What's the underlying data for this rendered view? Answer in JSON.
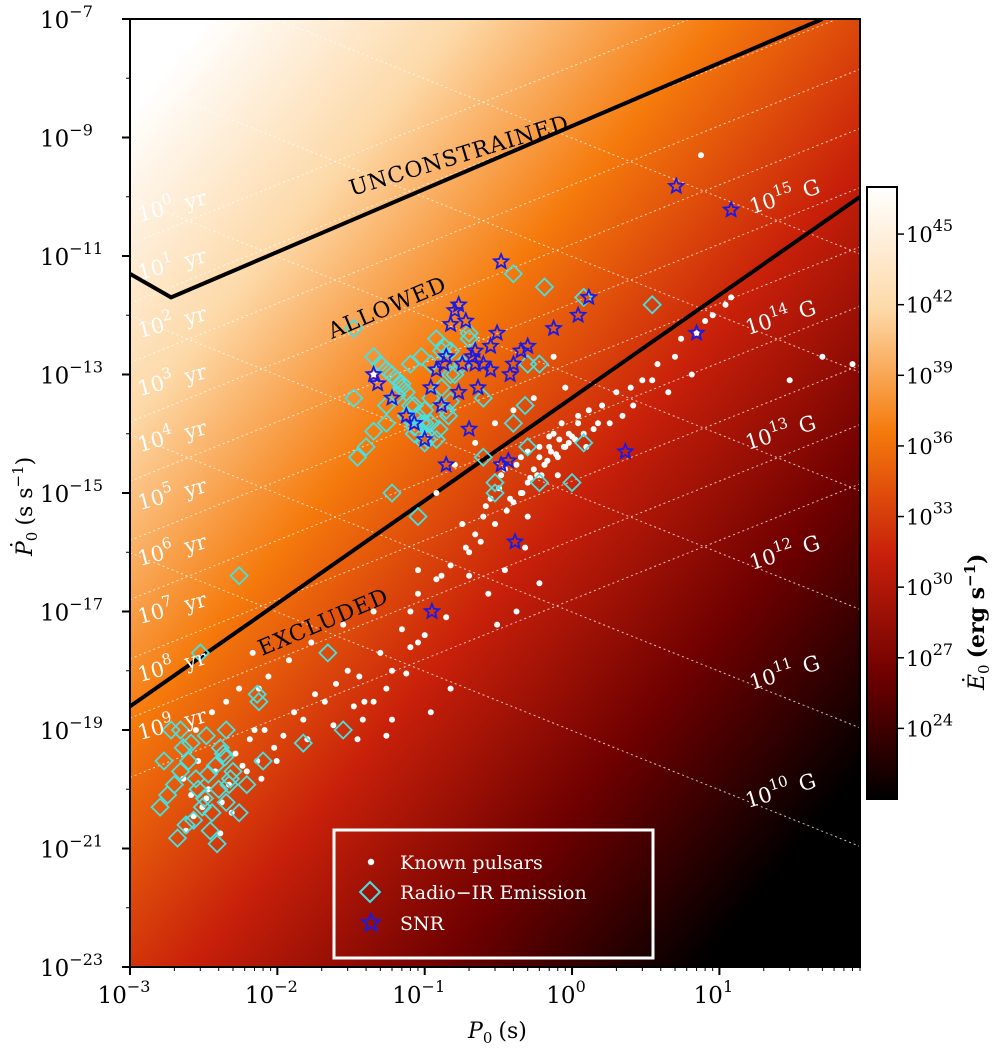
{
  "chart_data": {
    "type": "scatter",
    "xlabel": "P",
    "xlabel_sub": "0",
    "xlabel_unit": "(s)",
    "ylabel": "P",
    "ylabel_sub": "0",
    "ylabel_unit": "(s s",
    "ylabel_unit_exp": "−1",
    "ylabel_unit_close": ")",
    "x_scale": "log",
    "y_scale": "log",
    "xlim": [
      0.001,
      90
    ],
    "ylim": [
      1e-23,
      1e-07
    ],
    "x_ticks": [
      {
        "base": "10",
        "exp": "−3",
        "value": 0.001
      },
      {
        "base": "10",
        "exp": "−2",
        "value": 0.01
      },
      {
        "base": "10",
        "exp": "−1",
        "value": 0.1
      },
      {
        "base": "10",
        "exp": "0",
        "value": 1
      },
      {
        "base": "10",
        "exp": "1",
        "value": 10
      }
    ],
    "y_ticks": [
      {
        "base": "10",
        "exp": "−7",
        "value": 1e-07
      },
      {
        "base": "10",
        "exp": "−9",
        "value": 1e-09
      },
      {
        "base": "10",
        "exp": "−11",
        "value": 1e-11
      },
      {
        "base": "10",
        "exp": "−13",
        "value": 1e-13
      },
      {
        "base": "10",
        "exp": "−15",
        "value": 1e-15
      },
      {
        "base": "10",
        "exp": "−17",
        "value": 1e-17
      },
      {
        "base": "10",
        "exp": "−19",
        "value": 1e-19
      },
      {
        "base": "10",
        "exp": "−21",
        "value": 1e-21
      },
      {
        "base": "10",
        "exp": "−23",
        "value": 1e-23
      }
    ],
    "colorbar": {
      "label": "E",
      "label_sub": "0",
      "label_unit": "(erg s",
      "label_unit_exp": "−1",
      "label_unit_close": ")",
      "scale": "log",
      "range": [
        1e+21,
        1e+47
      ],
      "colors": [
        "#000000",
        "#6e0000",
        "#c8200a",
        "#f57a0c",
        "#fdd9a8",
        "#ffffff"
      ],
      "ticks": [
        {
          "base": "10",
          "exp": "45",
          "value": 1e+45
        },
        {
          "base": "10",
          "exp": "42",
          "value": 1e+42
        },
        {
          "base": "10",
          "exp": "39",
          "value": 1e+39
        },
        {
          "base": "10",
          "exp": "36",
          "value": 1e+36
        },
        {
          "base": "10",
          "exp": "33",
          "value": 1e+33
        },
        {
          "base": "10",
          "exp": "30",
          "value": 1e+30
        },
        {
          "base": "10",
          "exp": "27",
          "value": 1e+27
        },
        {
          "base": "10",
          "exp": "24",
          "value": 1e+24
        }
      ]
    },
    "region_labels": [
      "UNCONSTRAINED",
      "ALLOWED",
      "EXCLUDED"
    ],
    "age_lines": [
      {
        "base": "10",
        "exp": "0",
        "unit": "yr",
        "age_yr": 1
      },
      {
        "base": "10",
        "exp": "1",
        "unit": "yr",
        "age_yr": 10
      },
      {
        "base": "10",
        "exp": "2",
        "unit": "yr",
        "age_yr": 100
      },
      {
        "base": "10",
        "exp": "3",
        "unit": "yr",
        "age_yr": 1000
      },
      {
        "base": "10",
        "exp": "4",
        "unit": "yr",
        "age_yr": 10000
      },
      {
        "base": "10",
        "exp": "5",
        "unit": "yr",
        "age_yr": 100000
      },
      {
        "base": "10",
        "exp": "6",
        "unit": "yr",
        "age_yr": 1000000
      },
      {
        "base": "10",
        "exp": "7",
        "unit": "yr",
        "age_yr": 10000000
      },
      {
        "base": "10",
        "exp": "8",
        "unit": "yr",
        "age_yr": 100000000
      },
      {
        "base": "10",
        "exp": "9",
        "unit": "yr",
        "age_yr": 1000000000
      }
    ],
    "field_lines": [
      {
        "base": "10",
        "exp": "15",
        "unit": "G",
        "B_gauss": 1000000000000000.0
      },
      {
        "base": "10",
        "exp": "14",
        "unit": "G",
        "B_gauss": 100000000000000.0
      },
      {
        "base": "10",
        "exp": "13",
        "unit": "G",
        "B_gauss": 10000000000000.0
      },
      {
        "base": "10",
        "exp": "12",
        "unit": "G",
        "B_gauss": 1000000000000.0
      },
      {
        "base": "10",
        "exp": "11",
        "unit": "G",
        "B_gauss": 100000000000.0
      },
      {
        "base": "10",
        "exp": "10",
        "unit": "G",
        "B_gauss": 10000000000.0
      }
    ],
    "boundary_lines": [
      {
        "name": "UNCONSTRAINED",
        "points": [
          [
            0.001,
            5e-12
          ],
          [
            0.0019,
            2e-12
          ],
          [
            50,
            1e-07
          ]
        ]
      },
      {
        "name": "EXCLUDED",
        "points": [
          [
            0.001,
            2.5e-19
          ],
          [
            90,
            1e-10
          ]
        ]
      }
    ],
    "legend": {
      "placement": "lower-center",
      "entries": [
        {
          "label": "Known pulsars",
          "marker": "dot",
          "color": "#ffffff"
        },
        {
          "label": "Radio−IR Emission",
          "marker": "diamond",
          "color": "#48e0e0"
        },
        {
          "label": "SNR",
          "marker": "star",
          "color": "#1a1ae6"
        }
      ]
    },
    "series": [
      {
        "name": "Known pulsars",
        "x": [
          0.0023,
          0.0026,
          0.0029,
          0.0031,
          0.0034,
          0.0038,
          0.0042,
          0.0047,
          0.0052,
          0.0058,
          0.0065,
          0.0073,
          0.0082,
          0.0095,
          0.011,
          0.013,
          0.015,
          0.018,
          0.021,
          0.025,
          0.03,
          0.036,
          0.0024,
          0.0027,
          0.0033,
          0.0041,
          0.0049,
          0.0062,
          0.0078,
          0.0099,
          0.016,
          0.024,
          0.039,
          0.055,
          0.075,
          0.0028,
          0.0036,
          0.0045,
          0.0055,
          0.0068,
          0.0087,
          0.012,
          0.017,
          0.028,
          0.045,
          0.07,
          0.09,
          0.13,
          0.2,
          0.18,
          0.26,
          0.33,
          0.45,
          0.7,
          0.12,
          0.16,
          0.22,
          0.3,
          0.4,
          0.55,
          0.9,
          0.28,
          0.35,
          0.5,
          0.75,
          1.1,
          1.6,
          0.25,
          0.32,
          0.42,
          0.6,
          0.85,
          1.3,
          2.0,
          3.0,
          0.22,
          0.38,
          0.52,
          0.68,
          0.95,
          1.4,
          2.2,
          0.3,
          0.46,
          0.62,
          0.8,
          1.05,
          1.5,
          0.36,
          0.5,
          0.65,
          0.9,
          1.2,
          0.4,
          0.58,
          0.78,
          1.0,
          0.45,
          0.65,
          0.88,
          0.55,
          0.72,
          0.95,
          0.6,
          0.82,
          1.1,
          0.7,
          0.48,
          0.35,
          0.27,
          0.6,
          0.42,
          0.31,
          0.2,
          0.24,
          0.5,
          0.8,
          1.25,
          1.8,
          2.6,
          3.5,
          5.0,
          7.0,
          9.0,
          12.0,
          2.5,
          3.8,
          5.5,
          8.0,
          11.0,
          4.5,
          6.5,
          0.08,
          0.1,
          0.14,
          0.05,
          0.06,
          0.09,
          0.11,
          0.15,
          0.007,
          0.0075,
          0.045,
          0.055,
          0.038,
          0.08,
          0.12,
          0.15,
          0.19,
          0.09,
          0.035,
          0.033,
          0.06,
          0.75,
          30,
          50,
          80,
          7.5,
          0.045
        ],
        "y": [
          1.5e-20,
          8e-21,
          3e-20,
          5e-21,
          1e-20,
          2e-20,
          6e-21,
          1.2e-20,
          4e-20,
          2.5e-20,
          7e-20,
          3e-20,
          1e-19,
          5e-20,
          8e-20,
          2e-19,
          1.5e-19,
          4e-19,
          3e-19,
          6e-19,
          1e-18,
          8e-19,
          2e-21,
          3.5e-21,
          7e-21,
          1.8e-21,
          4e-21,
          2e-20,
          1.5e-20,
          3e-20,
          7e-20,
          1.2e-19,
          3e-19,
          5e-19,
          9e-19,
          1e-19,
          2e-19,
          3e-19,
          5e-19,
          2e-18,
          8e-19,
          1.5e-18,
          3e-18,
          6e-18,
          1e-17,
          5e-18,
          2e-17,
          4e-17,
          1e-16,
          3e-16,
          6e-16,
          2e-15,
          4e-15,
          9e-15,
          1e-15,
          3e-15,
          7e-15,
          1.5e-14,
          2.5e-14,
          4e-14,
          6e-14,
          8e-16,
          2.5e-15,
          5e-15,
          1e-14,
          2e-14,
          3e-14,
          4e-16,
          1.2e-15,
          3e-15,
          6e-15,
          1.5e-14,
          2.5e-14,
          5e-14,
          8e-14,
          2e-16,
          8e-16,
          1.8e-15,
          3.5e-15,
          7e-15,
          1.2e-14,
          2e-14,
          3e-16,
          1e-15,
          2e-15,
          4e-15,
          8e-15,
          1.5e-14,
          5e-16,
          1.5e-15,
          3e-15,
          6e-15,
          1e-14,
          7e-16,
          2e-15,
          4.5e-15,
          9e-15,
          1e-15,
          3e-15,
          6e-15,
          2.5e-15,
          5e-15,
          1e-14,
          4e-15,
          8e-15,
          1.5e-14,
          6e-15,
          1.2e-16,
          5e-17,
          2e-17,
          3e-17,
          1e-17,
          6e-18,
          4e-17,
          1.5e-16,
          4e-16,
          2e-15,
          6e-15,
          1.5e-14,
          3e-14,
          8e-14,
          2e-13,
          5e-13,
          1e-12,
          2e-12,
          6e-14,
          1.5e-13,
          4e-13,
          8e-13,
          1.5e-12,
          5e-14,
          1e-13,
          1e-17,
          4e-18,
          8e-18,
          2e-18,
          1e-18,
          3e-18,
          2e-19,
          5e-19,
          1e-19,
          5e-19,
          3e-19,
          8e-20,
          1.5e-19,
          2.5e-18,
          3.5e-17,
          6e-17,
          1.2e-16,
          5e-17,
          7e-20,
          2.5e-19,
          1.5e-19,
          2e-13,
          8e-14,
          2e-13,
          1.5e-13,
          5e-10,
          1e-13
        ]
      },
      {
        "name": "Radio−IR Emission",
        "x": [
          0.0016,
          0.0018,
          0.002,
          0.0022,
          0.0025,
          0.0028,
          0.0032,
          0.0036,
          0.004,
          0.0045,
          0.005,
          0.0021,
          0.0024,
          0.0027,
          0.0031,
          0.0035,
          0.0039,
          0.0044,
          0.0019,
          0.0023,
          0.0029,
          0.0034,
          0.0038,
          0.0043,
          0.0048,
          0.0017,
          0.0026,
          0.0033,
          0.0041,
          0.0047,
          0.0055,
          0.0062,
          0.0075,
          0.008,
          0.0055,
          0.003,
          0.0073,
          0.0045,
          0.0022,
          0.015,
          0.022,
          0.028,
          0.033,
          0.033,
          0.055,
          0.065,
          0.075,
          0.085,
          0.1,
          0.12,
          0.14,
          0.16,
          0.045,
          0.05,
          0.06,
          0.07,
          0.08,
          0.09,
          0.11,
          0.13,
          0.15,
          0.18,
          0.055,
          0.065,
          0.075,
          0.09,
          0.105,
          0.125,
          0.145,
          0.07,
          0.08,
          0.095,
          0.11,
          0.135,
          0.04,
          0.035,
          0.06,
          0.1,
          0.13,
          0.2,
          0.25,
          0.3,
          0.4,
          0.5,
          0.6,
          0.045,
          0.055,
          0.085,
          0.11,
          0.15,
          0.2,
          0.4,
          0.5,
          0.6,
          1.0,
          1.2,
          1.2,
          3.5,
          0.09,
          0.1,
          0.15,
          0.25,
          0.12,
          0.095,
          0.085,
          0.65,
          0.3,
          0.48
        ],
        "y": [
          5e-21,
          8e-21,
          1.2e-20,
          2e-20,
          3e-20,
          1.5e-20,
          7e-21,
          4e-21,
          1e-20,
          6e-21,
          2e-20,
          1.5e-21,
          2.5e-21,
          3e-21,
          5e-21,
          2e-21,
          1.2e-21,
          3.5e-20,
          1e-19,
          5e-20,
          1e-20,
          1.8e-20,
          2.5e-20,
          4e-20,
          1.5e-20,
          3e-20,
          6e-20,
          8e-20,
          5e-20,
          1.2e-20,
          4e-21,
          1.2e-20,
          3e-19,
          3e-20,
          4e-17,
          2e-18,
          4e-19,
          1e-19,
          1e-19,
          6e-20,
          2e-18,
          1e-19,
          4e-14,
          6e-13,
          1.2e-13,
          8e-14,
          5e-14,
          3e-14,
          1.5e-14,
          8e-15,
          2.5e-14,
          1e-13,
          2e-13,
          1.5e-13,
          1e-13,
          6e-14,
          3e-14,
          2e-14,
          4e-14,
          6e-14,
          1e-13,
          1.5e-13,
          3e-14,
          4.5e-14,
          2e-14,
          1.2e-14,
          8e-15,
          1.2e-14,
          2e-14,
          7e-14,
          1.5e-13,
          2e-13,
          1.5e-13,
          3e-13,
          6e-15,
          4e-15,
          1e-15,
          7e-15,
          2.5e-13,
          4e-13,
          4e-15,
          1.5e-15,
          1.5e-14,
          6e-15,
          1.5e-15,
          1.1e-14,
          1.5e-14,
          1.3e-14,
          1.5e-14,
          3.5e-14,
          5e-13,
          5e-12,
          1.5e-13,
          1.5e-13,
          1.5e-15,
          7e-15,
          2e-12,
          1.5e-12,
          4e-16,
          2.5e-14,
          2.5e-13,
          4e-14,
          4e-13,
          1.5e-14,
          1e-14,
          3e-12,
          1e-15,
          3e-14
        ]
      },
      {
        "name": "SNR",
        "x": [
          0.045,
          0.048,
          0.06,
          0.075,
          0.085,
          0.1,
          0.11,
          0.12,
          0.135,
          0.14,
          0.15,
          0.17,
          0.19,
          0.21,
          0.22,
          0.25,
          0.28,
          0.31,
          0.33,
          0.38,
          0.4,
          0.45,
          0.5,
          0.75,
          1.1,
          1.3,
          5.1,
          7.0,
          12.0,
          0.16,
          0.18,
          0.22,
          0.28,
          0.33,
          0.23,
          0.17,
          0.13,
          0.2,
          0.37,
          0.14,
          0.112,
          0.41,
          2.3
        ],
        "y": [
          1e-13,
          7e-14,
          4e-14,
          2e-14,
          1.5e-14,
          8e-15,
          6e-14,
          1.2e-13,
          1.5e-13,
          2e-13,
          7e-13,
          1.5e-12,
          8e-13,
          2e-13,
          1.5e-13,
          1.5e-13,
          1.2e-13,
          5e-13,
          8e-12,
          1e-13,
          1.5e-13,
          2.5e-13,
          3e-13,
          6e-13,
          1e-12,
          2e-12,
          1.5e-10,
          5e-13,
          6e-11,
          1.2e-12,
          1.5e-13,
          2.5e-13,
          3e-13,
          3e-15,
          6e-14,
          5e-14,
          3e-14,
          1.2e-14,
          3.5e-15,
          3e-15,
          1e-17,
          1.5e-16,
          5e-15
        ]
      }
    ]
  }
}
